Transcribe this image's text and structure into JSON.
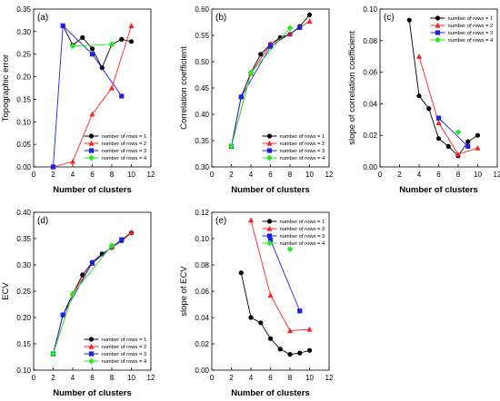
{
  "colors": {
    "rows1": "#000000",
    "rows2": "#ff2020",
    "rows3": "#2020e0",
    "rows4": "#22ee22"
  },
  "chart_data": [
    {
      "panel": "(a)",
      "type": "line",
      "xlabel": "Number of clusters",
      "ylabel": "Topographic error",
      "xlim": [
        0,
        12
      ],
      "ylim": [
        0,
        0.35
      ],
      "xticks": [
        "0",
        "2",
        "4",
        "6",
        "8",
        "10",
        "12"
      ],
      "yticks": [
        "0.00",
        "0.05",
        "0.10",
        "0.15",
        "0.20",
        "0.25",
        "0.30",
        "0.35"
      ],
      "legend": "bottom-right",
      "series": [
        {
          "name": "number of rows = 1",
          "marker": "circle",
          "color": "#000000",
          "x": [
            3,
            4,
            5,
            6,
            7,
            8,
            9,
            10
          ],
          "y": [
            0.313,
            0.27,
            0.287,
            0.262,
            0.22,
            0.272,
            0.283,
            0.278
          ]
        },
        {
          "name": "number of rows = 2",
          "marker": "triangle",
          "color": "#ff2020",
          "x": [
            2,
            4,
            6,
            8,
            10
          ],
          "y": [
            0.0,
            0.012,
            0.117,
            0.175,
            0.313
          ]
        },
        {
          "name": "number of rows = 3",
          "marker": "square",
          "color": "#2020e0",
          "x": [
            2,
            3,
            6,
            9
          ],
          "y": [
            0.0,
            0.313,
            0.25,
            0.157
          ]
        },
        {
          "name": "number of rows = 4",
          "marker": "diamond",
          "color": "#22ee22",
          "x": [
            4,
            8
          ],
          "y": [
            0.268,
            0.272
          ]
        }
      ]
    },
    {
      "panel": "(b)",
      "type": "line",
      "xlabel": "Number of clusters",
      "ylabel": "Correlation coefficient",
      "xlim": [
        0,
        12
      ],
      "ylim": [
        0.3,
        0.6
      ],
      "xticks": [
        "0",
        "2",
        "4",
        "6",
        "8",
        "10",
        "12"
      ],
      "yticks": [
        "0.30",
        "0.35",
        "0.40",
        "0.45",
        "0.50",
        "0.55",
        "0.60"
      ],
      "legend": "bottom-right",
      "series": [
        {
          "name": "number of rows = 1",
          "marker": "circle",
          "color": "#000000",
          "x": [
            2,
            3,
            4,
            5,
            6,
            7,
            8,
            9,
            10
          ],
          "y": [
            0.339,
            0.433,
            0.479,
            0.514,
            0.533,
            0.546,
            0.552,
            0.567,
            0.589
          ]
        },
        {
          "name": "number of rows = 2",
          "marker": "triangle",
          "color": "#ff2020",
          "x": [
            2,
            4,
            6,
            8,
            10
          ],
          "y": [
            0.339,
            0.478,
            0.533,
            0.553,
            0.577
          ]
        },
        {
          "name": "number of rows = 3",
          "marker": "square",
          "color": "#2020e0",
          "x": [
            2,
            3,
            6,
            9
          ],
          "y": [
            0.339,
            0.433,
            0.529,
            0.565
          ]
        },
        {
          "name": "number of rows = 4",
          "marker": "diamond",
          "color": "#22ee22",
          "x": [
            2,
            4,
            8
          ],
          "y": [
            0.339,
            0.479,
            0.564
          ]
        }
      ]
    },
    {
      "panel": "(c)",
      "type": "line",
      "xlabel": "Number of clusters",
      "ylabel": "slope of correlation coefficient",
      "xlim": [
        0,
        12
      ],
      "ylim": [
        0.0,
        0.1
      ],
      "xticks": [
        "0",
        "2",
        "4",
        "6",
        "8",
        "10",
        "12"
      ],
      "yticks": [
        "0.00",
        "0.02",
        "0.04",
        "0.06",
        "0.08",
        "0.10"
      ],
      "legend": "top-right",
      "series": [
        {
          "name": "number of rows = 1",
          "marker": "circle",
          "color": "#000000",
          "x": [
            3,
            4,
            5,
            6,
            7,
            8,
            9,
            10
          ],
          "y": [
            0.093,
            0.045,
            0.037,
            0.018,
            0.013,
            0.007,
            0.016,
            0.02
          ]
        },
        {
          "name": "number of rows = 2",
          "marker": "triangle",
          "color": "#ff2020",
          "x": [
            4,
            6,
            8,
            10
          ],
          "y": [
            0.07,
            0.028,
            0.008,
            0.012
          ]
        },
        {
          "name": "number of rows = 3",
          "marker": "square",
          "color": "#2020e0",
          "x": [
            6,
            9
          ],
          "y": [
            0.031,
            0.013
          ]
        },
        {
          "name": "number of rows = 4",
          "marker": "diamond",
          "color": "#22ee22",
          "x": [
            8
          ],
          "y": [
            0.022
          ]
        }
      ]
    },
    {
      "panel": "(d)",
      "type": "line",
      "xlabel": "Number of clusters",
      "ylabel": "ECV",
      "xlim": [
        0,
        12
      ],
      "ylim": [
        0.1,
        0.4
      ],
      "xticks": [
        "0",
        "2",
        "4",
        "6",
        "8",
        "10",
        "12"
      ],
      "yticks": [
        "0.10",
        "0.15",
        "0.20",
        "0.25",
        "0.30",
        "0.35",
        "0.40"
      ],
      "legend": "bottom-right",
      "series": [
        {
          "name": "number of rows = 1",
          "marker": "circle",
          "color": "#000000",
          "x": [
            2,
            3,
            4,
            5,
            6,
            7,
            8,
            9,
            10
          ],
          "y": [
            0.131,
            0.205,
            0.245,
            0.281,
            0.305,
            0.321,
            0.333,
            0.346,
            0.361
          ]
        },
        {
          "name": "number of rows = 2",
          "marker": "triangle",
          "color": "#ff2020",
          "x": [
            2,
            4,
            6,
            8,
            10
          ],
          "y": [
            0.131,
            0.246,
            0.303,
            0.334,
            0.362
          ]
        },
        {
          "name": "number of rows = 3",
          "marker": "square",
          "color": "#2020e0",
          "x": [
            2,
            3,
            6,
            9
          ],
          "y": [
            0.131,
            0.205,
            0.304,
            0.348
          ]
        },
        {
          "name": "number of rows = 4",
          "marker": "diamond",
          "color": "#22ee22",
          "x": [
            2,
            4,
            8
          ],
          "y": [
            0.131,
            0.245,
            0.337
          ]
        }
      ]
    },
    {
      "panel": "(e)",
      "type": "line",
      "xlabel": "Number of clusters",
      "ylabel": "slope of ECV",
      "xlim": [
        0,
        12
      ],
      "ylim": [
        0.0,
        0.12
      ],
      "xticks": [
        "0",
        "2",
        "4",
        "6",
        "8",
        "10",
        "12"
      ],
      "yticks": [
        "0.00",
        "0.02",
        "0.04",
        "0.06",
        "0.08",
        "0.10",
        "0.12"
      ],
      "legend": "top-right",
      "series": [
        {
          "name": "number of rows = 1",
          "marker": "circle",
          "color": "#000000",
          "x": [
            3,
            4,
            5,
            6,
            7,
            8,
            9,
            10
          ],
          "y": [
            0.074,
            0.04,
            0.036,
            0.024,
            0.016,
            0.012,
            0.013,
            0.015
          ]
        },
        {
          "name": "number of rows = 2",
          "marker": "triangle",
          "color": "#ff2020",
          "x": [
            4,
            6,
            8,
            10
          ],
          "y": [
            0.114,
            0.057,
            0.03,
            0.031
          ]
        },
        {
          "name": "number of rows = 3",
          "marker": "square",
          "color": "#2020e0",
          "x": [
            6,
            9
          ],
          "y": [
            0.099,
            0.045
          ]
        },
        {
          "name": "number of rows = 4",
          "marker": "diamond",
          "color": "#22ee22",
          "x": [
            8
          ],
          "y": [
            0.092
          ]
        }
      ]
    }
  ]
}
